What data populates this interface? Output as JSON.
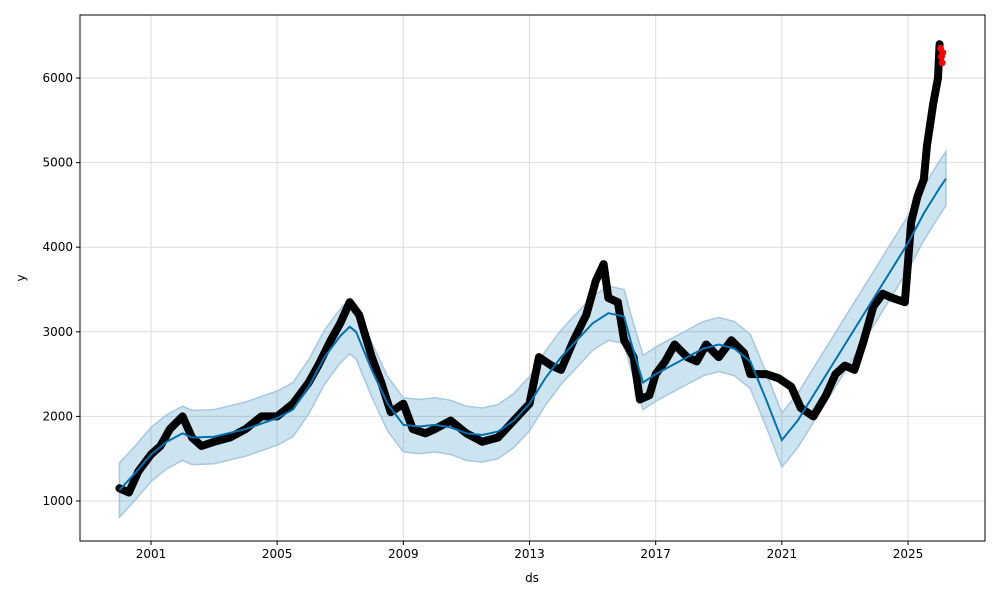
{
  "chart_data": {
    "type": "line",
    "title": "",
    "xlabel": "ds",
    "ylabel": "y",
    "xlim": [
      1998.75,
      2027.44
    ],
    "ylim": [
      527,
      6745
    ],
    "grid": true,
    "xticks": [
      2001,
      2005,
      2009,
      2013,
      2017,
      2021,
      2025
    ],
    "xtick_labels": [
      "2001",
      "2005",
      "2009",
      "2013",
      "2017",
      "2021",
      "2025"
    ],
    "yticks": [
      1000,
      2000,
      3000,
      4000,
      5000,
      6000
    ],
    "ytick_labels": [
      "1000",
      "2000",
      "3000",
      "4000",
      "5000",
      "6000"
    ],
    "colors": {
      "forecast": "#0072B2",
      "band": "#0072B2",
      "observed": "#000000",
      "recent": "#ff0000"
    },
    "forecast": {
      "name": "yhat",
      "x": [
        2000.0,
        2000.5,
        2001.0,
        2001.5,
        2002.0,
        2002.3,
        2003.0,
        2004.0,
        2005.0,
        2005.5,
        2006.0,
        2006.5,
        2007.0,
        2007.3,
        2007.5,
        2008.0,
        2008.5,
        2009.0,
        2009.5,
        2010.0,
        2010.5,
        2011.0,
        2011.5,
        2012.0,
        2012.5,
        2013.0,
        2013.5,
        2014.0,
        2014.5,
        2015.0,
        2015.5,
        2016.0,
        2016.2,
        2016.6,
        2017.0,
        2017.5,
        2018.0,
        2018.5,
        2019.0,
        2019.5,
        2020.0,
        2020.5,
        2021.0,
        2021.5,
        2022.0,
        2022.5,
        2023.0,
        2023.5,
        2024.0,
        2024.5,
        2025.0,
        2025.5,
        2026.0,
        2026.2
      ],
      "y": [
        1130,
        1330,
        1550,
        1700,
        1800,
        1750,
        1760,
        1850,
        1980,
        2080,
        2350,
        2700,
        2950,
        3060,
        3000,
        2550,
        2150,
        1900,
        1880,
        1900,
        1870,
        1800,
        1780,
        1820,
        1950,
        2150,
        2450,
        2700,
        2900,
        3100,
        3220,
        3180,
        2900,
        2400,
        2500,
        2600,
        2700,
        2800,
        2850,
        2800,
        2650,
        2200,
        1720,
        1950,
        2250,
        2550,
        2850,
        3150,
        3450,
        3750,
        4050,
        4400,
        4700,
        4810
      ],
      "band_halfwidth": 320
    },
    "observed": {
      "name": "y",
      "x": [
        2000.0,
        2000.3,
        2000.6,
        2001.0,
        2001.3,
        2001.6,
        2002.0,
        2002.3,
        2002.6,
        2003.0,
        2003.5,
        2004.0,
        2004.5,
        2005.0,
        2005.5,
        2006.0,
        2006.3,
        2006.7,
        2007.0,
        2007.3,
        2007.6,
        2008.0,
        2008.3,
        2008.6,
        2009.0,
        2009.3,
        2009.7,
        2010.0,
        2010.5,
        2011.0,
        2011.5,
        2012.0,
        2012.5,
        2013.0,
        2013.3,
        2013.7,
        2014.0,
        2014.4,
        2014.8,
        2015.1,
        2015.35,
        2015.5,
        2015.8,
        2016.0,
        2016.3,
        2016.5,
        2016.8,
        2017.0,
        2017.3,
        2017.6,
        2018.0,
        2018.3,
        2018.6,
        2019.0,
        2019.4,
        2019.8,
        2020.0,
        2020.5,
        2020.9,
        2021.3,
        2021.6,
        2022.0,
        2022.4,
        2022.7,
        2023.0,
        2023.3,
        2023.6,
        2023.9,
        2024.2,
        2024.5,
        2024.9,
        2025.1,
        2025.3,
        2025.5,
        2025.6,
        2025.8,
        2025.95,
        2026.0
      ],
      "y": [
        1150,
        1100,
        1350,
        1550,
        1650,
        1850,
        2000,
        1750,
        1650,
        1700,
        1750,
        1850,
        2000,
        2000,
        2150,
        2400,
        2600,
        2900,
        3100,
        3350,
        3200,
        2700,
        2400,
        2050,
        2150,
        1850,
        1800,
        1850,
        1950,
        1800,
        1700,
        1750,
        1950,
        2150,
        2700,
        2600,
        2550,
        2900,
        3200,
        3600,
        3800,
        3400,
        3350,
        2900,
        2700,
        2200,
        2250,
        2500,
        2650,
        2850,
        2700,
        2650,
        2850,
        2700,
        2900,
        2750,
        2500,
        2500,
        2450,
        2350,
        2100,
        2000,
        2250,
        2500,
        2600,
        2550,
        2900,
        3300,
        3450,
        3400,
        3350,
        4300,
        4600,
        4800,
        5200,
        5700,
        6000,
        6400
      ]
    },
    "recent": {
      "name": "recent",
      "x": [
        2026.03,
        2026.06,
        2026.08,
        2026.1
      ],
      "y": [
        6350,
        6250,
        6180,
        6300
      ]
    }
  }
}
